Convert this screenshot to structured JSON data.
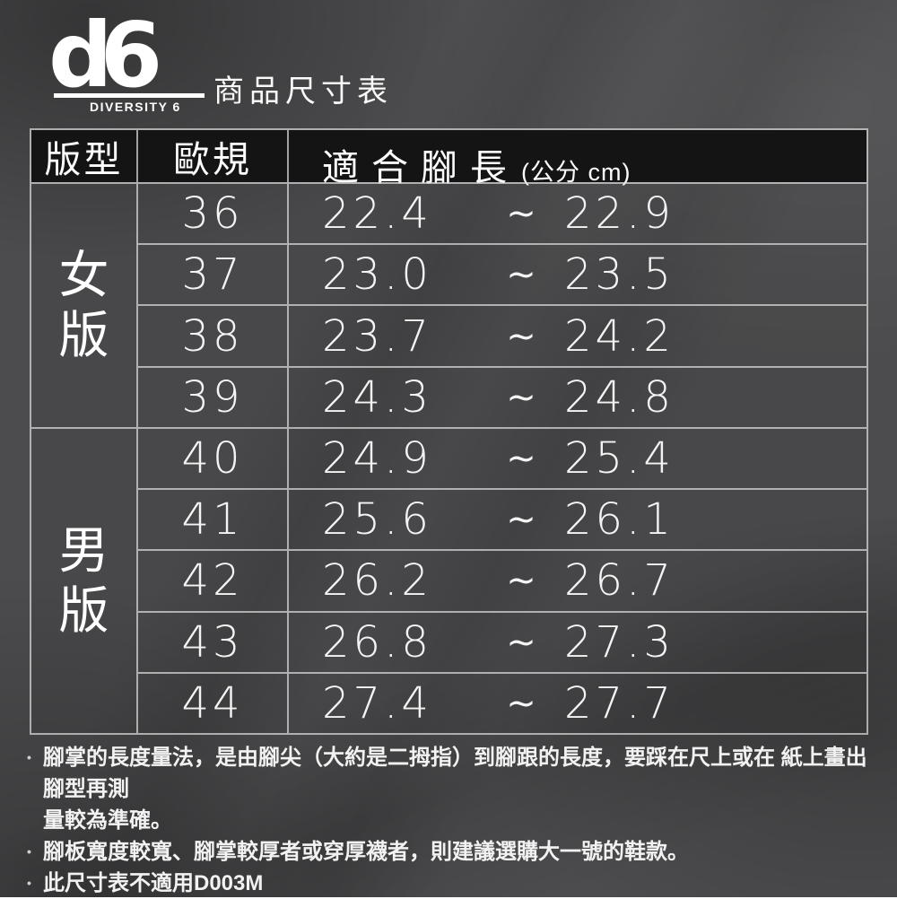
{
  "logo": {
    "text": "d6",
    "subtext": "DIVERSITY 6"
  },
  "header": {
    "title": "商品尺寸表"
  },
  "table": {
    "columns": {
      "type": "版型",
      "eu": "歐規",
      "length": "適合腳長",
      "length_unit": "(公分 cm)"
    },
    "tilde": "~",
    "sections": [
      {
        "label": "女版",
        "row_start": 0,
        "row_count": 4
      },
      {
        "label": "男版",
        "row_start": 4,
        "row_count": 5
      }
    ],
    "rows": [
      {
        "size": "36",
        "min": "22.4",
        "max": "22.9"
      },
      {
        "size": "37",
        "min": "23.0",
        "max": "23.5"
      },
      {
        "size": "38",
        "min": "23.7",
        "max": "24.2"
      },
      {
        "size": "39",
        "min": "24.3",
        "max": "24.8"
      },
      {
        "size": "40",
        "min": "24.9",
        "max": "25.4"
      },
      {
        "size": "41",
        "min": "25.6",
        "max": "26.1"
      },
      {
        "size": "42",
        "min": "26.2",
        "max": "26.7"
      },
      {
        "size": "43",
        "min": "26.8",
        "max": "27.3"
      },
      {
        "size": "44",
        "min": "27.4",
        "max": "27.7"
      }
    ]
  },
  "notes": {
    "bullet": "•",
    "items": [
      {
        "lines": [
          "腳掌的長度量法，是由腳尖（大約是二拇指）到腳跟的長度，要踩在尺上或在 紙上畫出腳型再測",
          "量較為準確。"
        ]
      },
      {
        "lines": [
          "腳板寬度較寬、腳掌較厚者或穿厚襪者，則建議選購大一號的鞋款。"
        ]
      },
      {
        "lines": [
          "此尺寸表不適用D003M"
        ]
      }
    ]
  },
  "colors": {
    "background": "#4c4c4e",
    "header_cell": "#141414",
    "grid_line": "#dedee0",
    "text": "#ffffff"
  },
  "chart_data": {
    "type": "table",
    "title": "商品尺寸表",
    "columns": [
      "版型",
      "歐規",
      "適合腳長 (公分 cm)"
    ],
    "rows": [
      [
        "女版",
        "36",
        "22.4 ~ 22.9"
      ],
      [
        "女版",
        "37",
        "23.0 ~ 23.5"
      ],
      [
        "女版",
        "38",
        "23.7 ~ 24.2"
      ],
      [
        "女版",
        "39",
        "24.3 ~ 24.8"
      ],
      [
        "男版",
        "40",
        "24.9 ~ 25.4"
      ],
      [
        "男版",
        "41",
        "25.6 ~ 26.1"
      ],
      [
        "男版",
        "42",
        "26.2 ~ 26.7"
      ],
      [
        "男版",
        "43",
        "26.8 ~ 27.3"
      ],
      [
        "男版",
        "44",
        "27.4 ~ 27.7"
      ]
    ]
  }
}
